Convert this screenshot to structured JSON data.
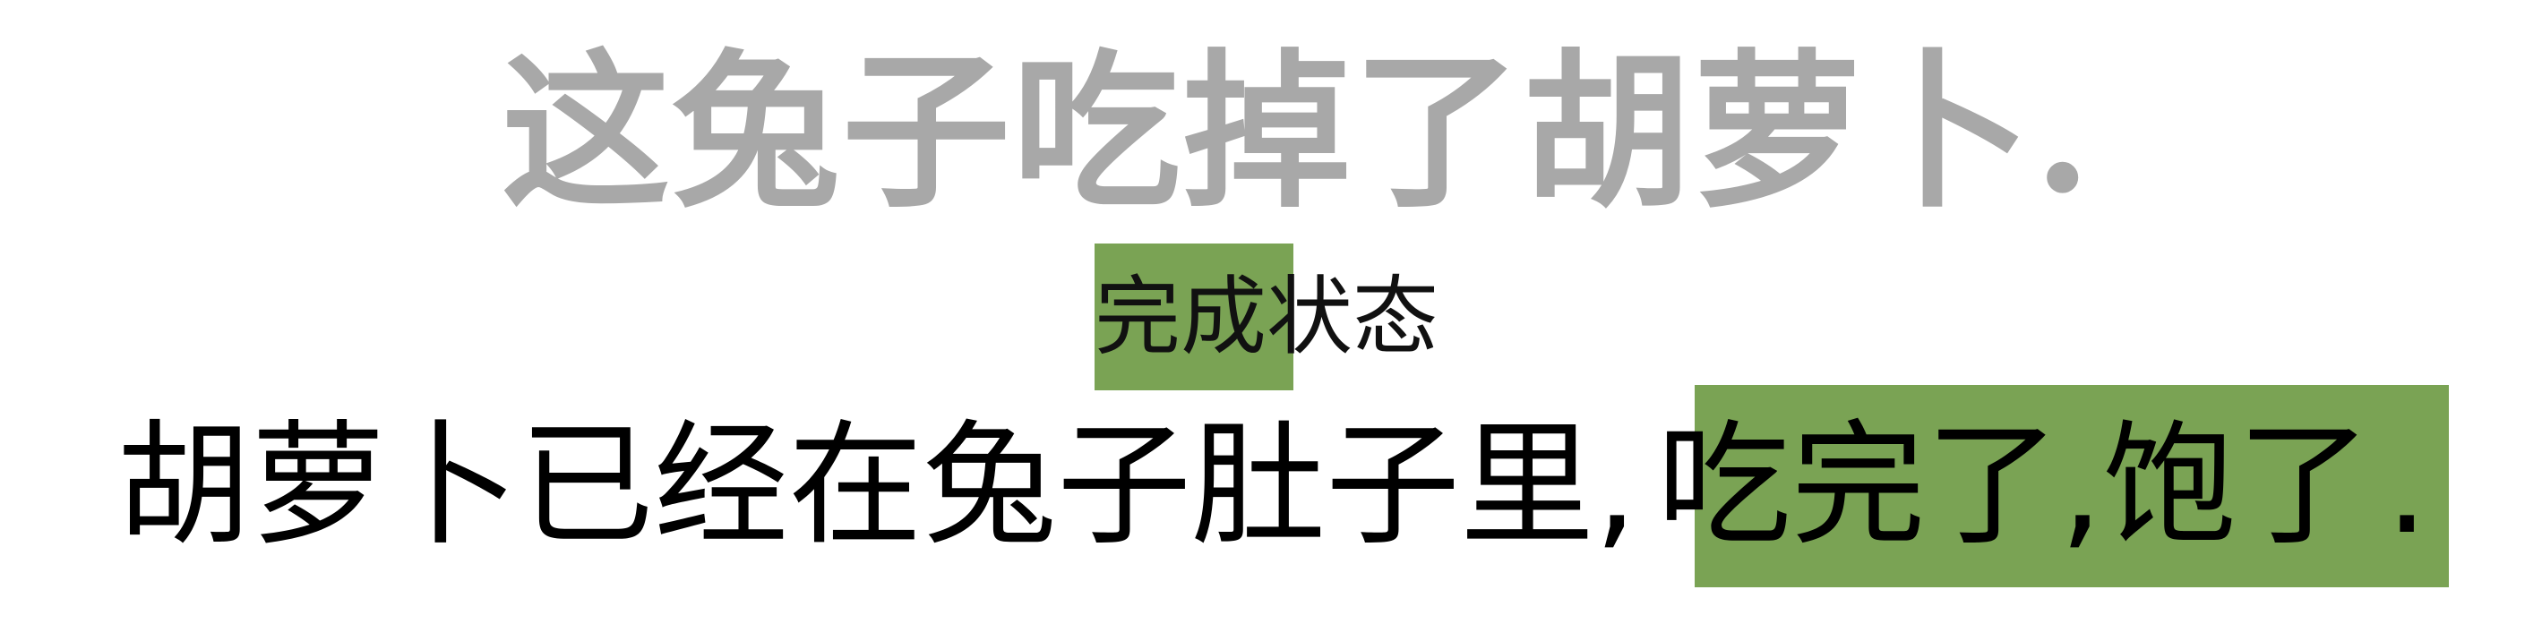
{
  "title": "这兔子吃掉了胡萝卜.",
  "label": {
    "highlighted": "完成",
    "rest": "状态"
  },
  "sentence": {
    "before": "胡萝卜已经在兔子肚子里,",
    "highlighted": "吃完了,饱了",
    "after": "."
  },
  "colors": {
    "highlight": "#7aa354",
    "title": "#a8a8a8",
    "text": "#000000"
  }
}
